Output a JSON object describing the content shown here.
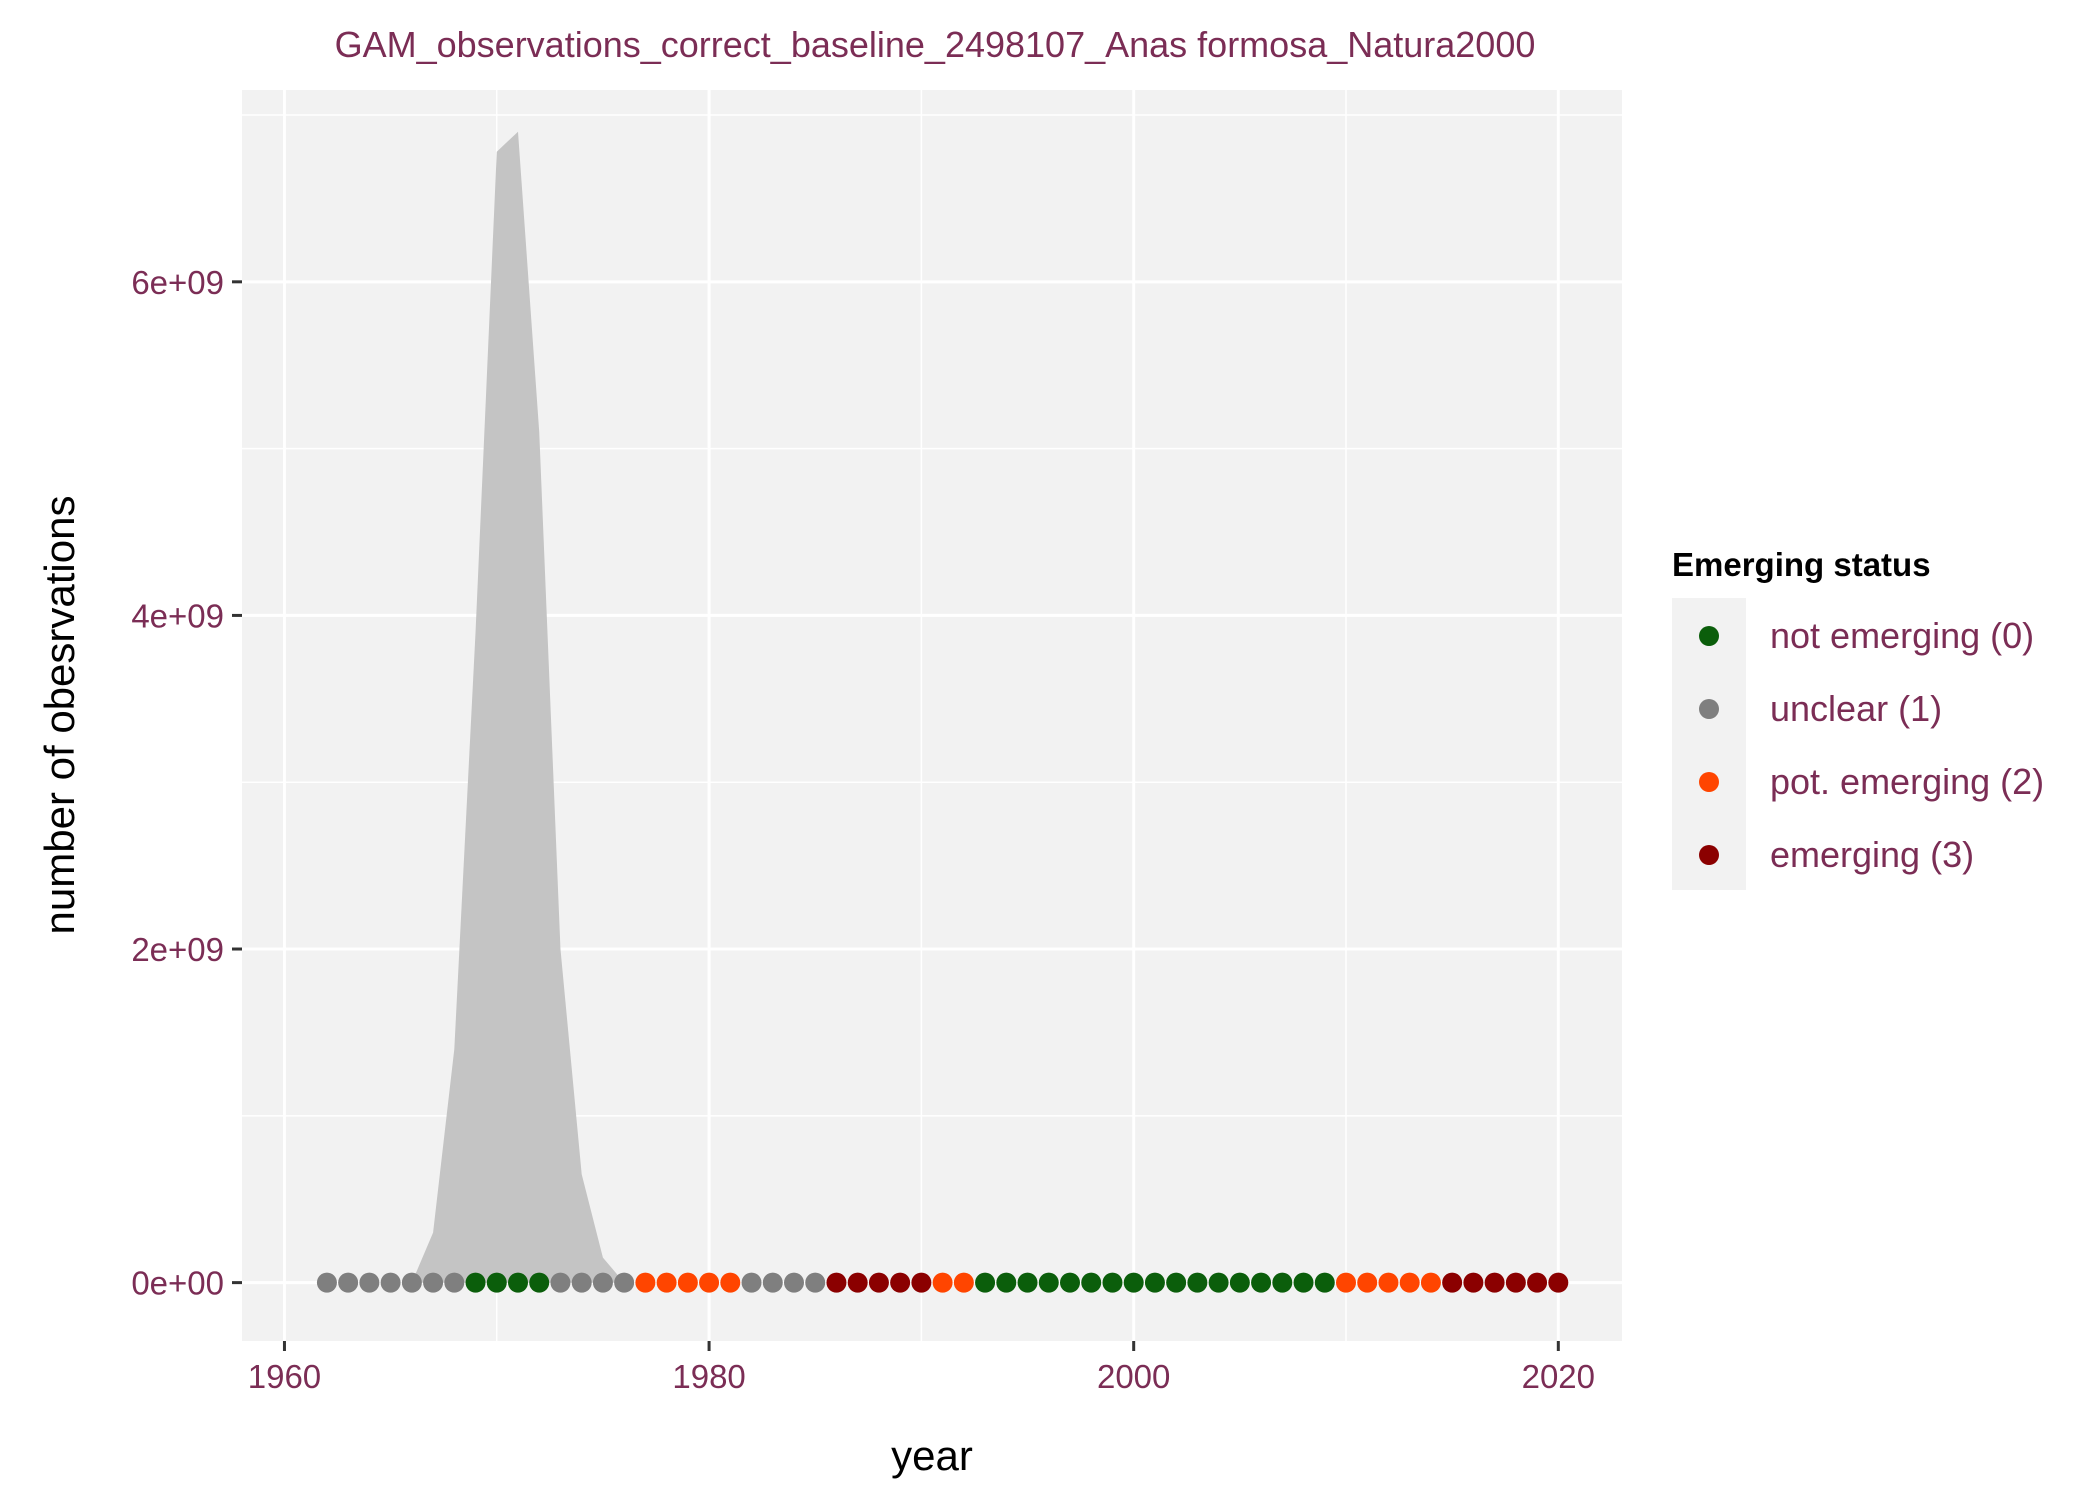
{
  "chart_data": {
    "type": "scatter",
    "title": "GAM_observations_correct_baseline_2498107_Anas formosa_Natura2000",
    "xlabel": "year",
    "ylabel": "number of obesrvations",
    "xlim": [
      1958,
      2023
    ],
    "ylim": [
      -350000000,
      7150000000
    ],
    "x_ticks": [
      1960,
      1980,
      2000,
      2020
    ],
    "x_tick_labels": [
      "1960",
      "1980",
      "2000",
      "2020"
    ],
    "y_ticks": [
      0,
      2000000000,
      4000000000,
      6000000000
    ],
    "y_tick_labels": [
      "0e+00",
      "2e+09",
      "4e+09",
      "6e+09"
    ],
    "grid": true,
    "panel_background": "#f2f2f2",
    "area": {
      "name": "",
      "color": "#c4c4c4",
      "points": [
        [
          1966,
          0
        ],
        [
          1967,
          300000000
        ],
        [
          1968,
          1400000000
        ],
        [
          1969,
          3900000000
        ],
        [
          1970,
          6780000000
        ],
        [
          1971,
          6900000000
        ],
        [
          1972,
          5100000000
        ],
        [
          1973,
          2000000000
        ],
        [
          1974,
          650000000
        ],
        [
          1975,
          150000000
        ],
        [
          1976,
          0
        ]
      ]
    },
    "points": {
      "x": [
        1962,
        1963,
        1964,
        1965,
        1966,
        1967,
        1968,
        1969,
        1970,
        1971,
        1972,
        1973,
        1974,
        1975,
        1976,
        1977,
        1978,
        1979,
        1980,
        1981,
        1982,
        1983,
        1984,
        1985,
        1986,
        1987,
        1988,
        1989,
        1990,
        1991,
        1992,
        1993,
        1994,
        1995,
        1996,
        1997,
        1998,
        1999,
        2000,
        2001,
        2002,
        2003,
        2004,
        2005,
        2006,
        2007,
        2008,
        2009,
        2010,
        2011,
        2012,
        2013,
        2014,
        2015,
        2016,
        2017,
        2018,
        2019,
        2020
      ],
      "y": [
        0,
        0,
        0,
        0,
        0,
        0,
        0,
        0,
        0,
        0,
        0,
        0,
        0,
        0,
        0,
        0,
        0,
        0,
        0,
        0,
        0,
        0,
        0,
        0,
        0,
        0,
        0,
        0,
        0,
        0,
        0,
        0,
        0,
        0,
        0,
        0,
        0,
        0,
        0,
        0,
        0,
        0,
        0,
        0,
        0,
        0,
        0,
        0,
        0,
        0,
        0,
        0,
        0,
        0,
        0,
        0,
        0,
        0,
        0
      ],
      "status": [
        1,
        1,
        1,
        1,
        1,
        1,
        1,
        0,
        0,
        0,
        0,
        1,
        1,
        1,
        1,
        2,
        2,
        2,
        2,
        2,
        1,
        1,
        1,
        1,
        3,
        3,
        3,
        3,
        3,
        2,
        2,
        0,
        0,
        0,
        0,
        0,
        0,
        0,
        0,
        0,
        0,
        0,
        0,
        0,
        0,
        0,
        0,
        0,
        2,
        2,
        2,
        2,
        2,
        3,
        3,
        3,
        3,
        3,
        3
      ]
    },
    "legend": {
      "title": "Emerging status",
      "position": "right",
      "items": [
        {
          "label": "not emerging (0)",
          "color": "#0b5e0b"
        },
        {
          "label": "unclear (1)",
          "color": "#7f7f7f"
        },
        {
          "label": "pot. emerging (2)",
          "color": "#ff4500"
        },
        {
          "label": "emerging (3)",
          "color": "#8b0000"
        }
      ]
    }
  }
}
